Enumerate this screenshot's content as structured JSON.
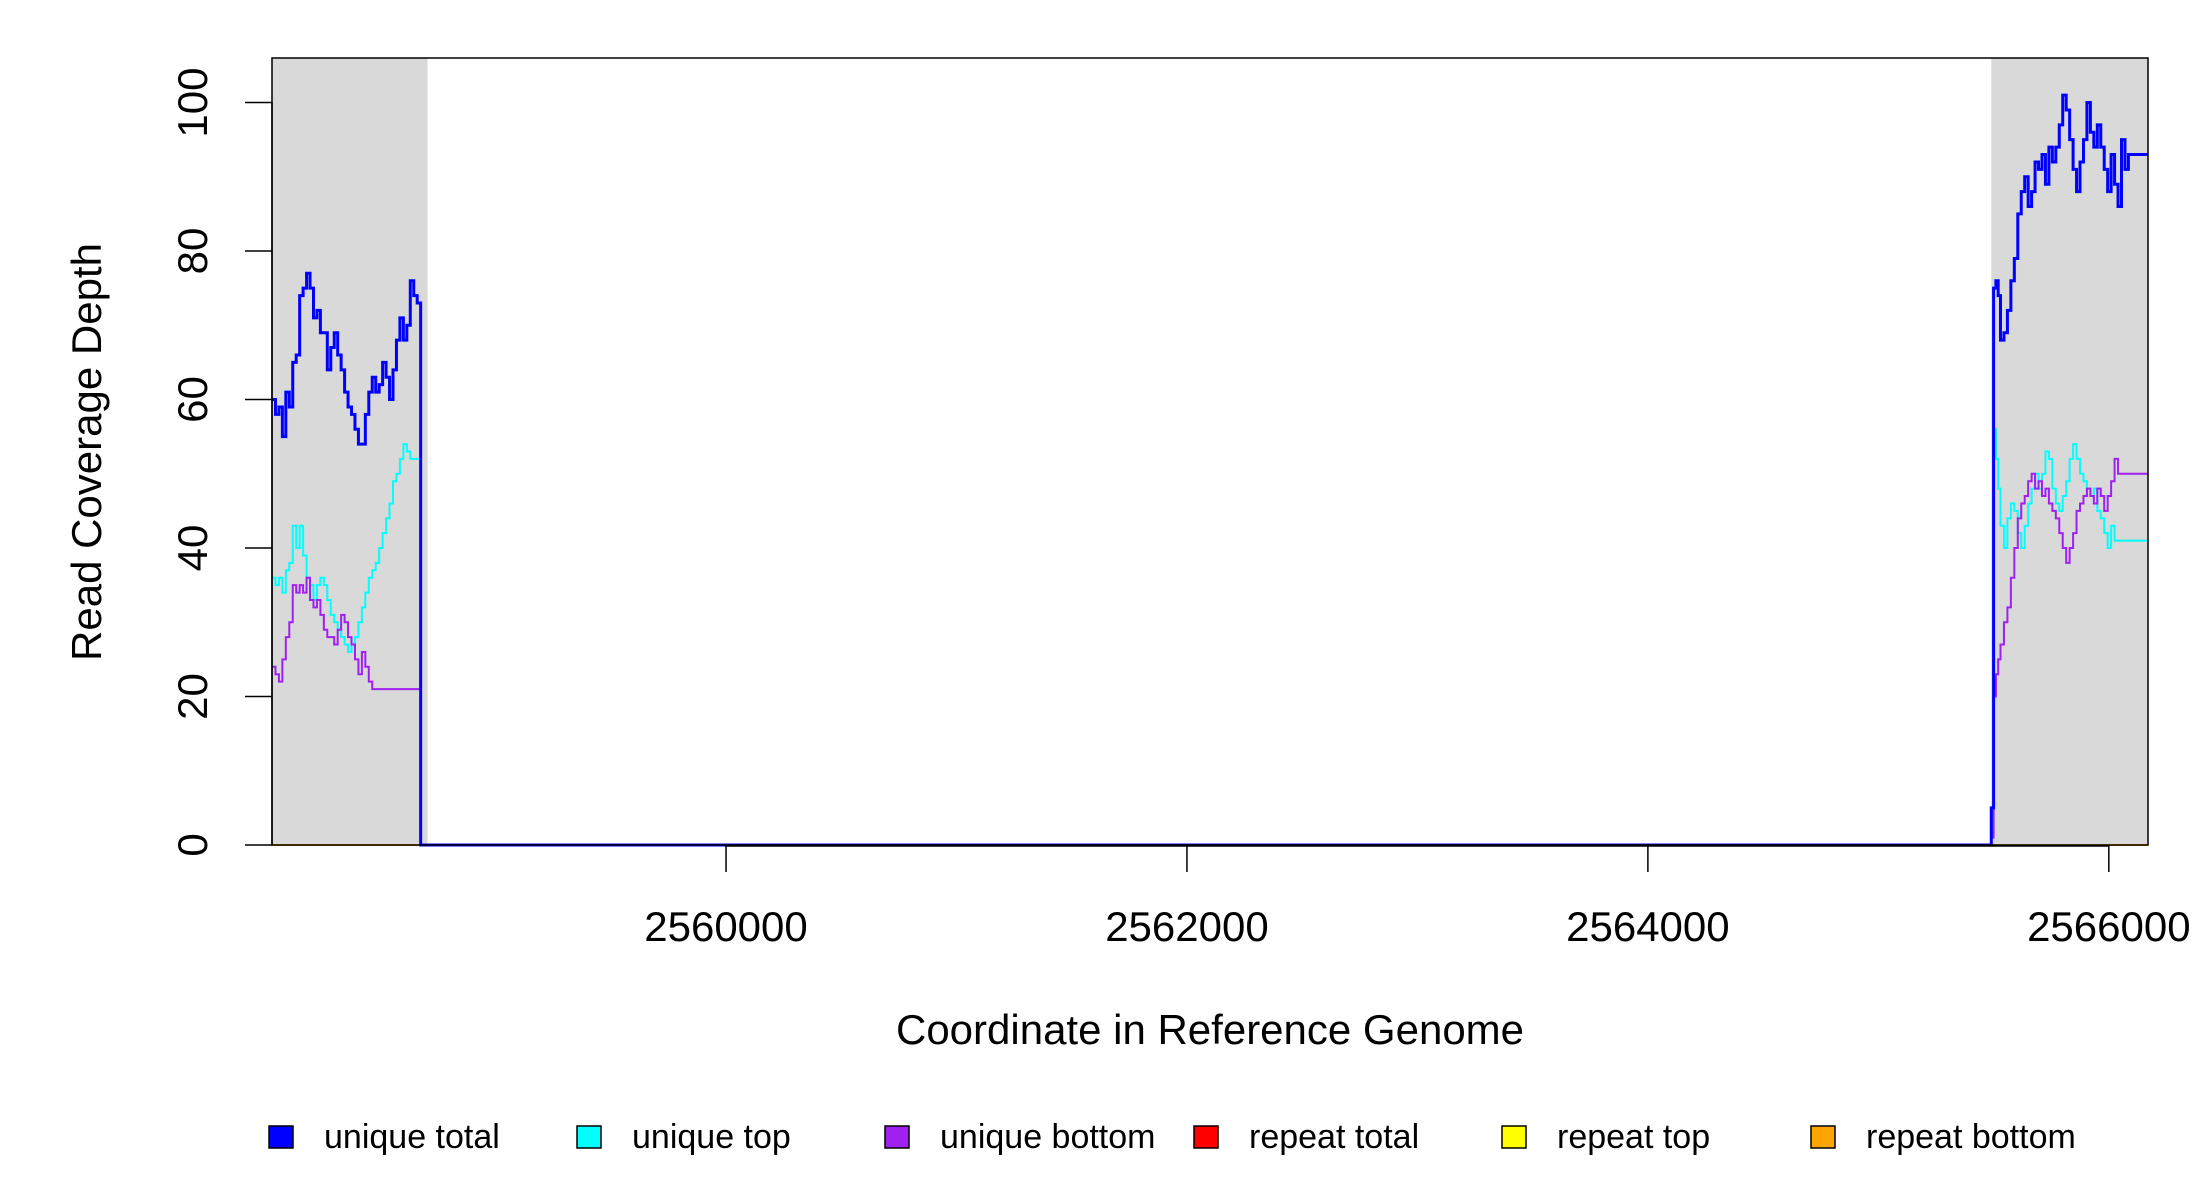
{
  "chart_data": {
    "type": "line",
    "title": "",
    "xlabel": "Coordinate in Reference Genome",
    "ylabel": "Read Coverage Depth",
    "xlim": [
      2558030,
      2566170
    ],
    "ylim": [
      0,
      106
    ],
    "x_ticks": [
      2560000,
      2562000,
      2564000,
      2566000
    ],
    "x_tick_labels": [
      "2560000",
      "2562000",
      "2564000",
      "2566000"
    ],
    "y_ticks": [
      0,
      20,
      40,
      60,
      80,
      100
    ],
    "y_tick_labels": [
      "0",
      "20",
      "40",
      "60",
      "80",
      "100"
    ],
    "shaded_regions": [
      [
        2558030,
        2558705
      ],
      [
        2565490,
        2566170
      ]
    ],
    "shade_color": "#d9d9d9",
    "legend_position": "bottom",
    "grid": false,
    "series": [
      {
        "name": "unique total",
        "color": "#0000ff",
        "width": 3,
        "x": [
          2558030,
          2558045,
          2558060,
          2558075,
          2558090,
          2558105,
          2558120,
          2558135,
          2558150,
          2558165,
          2558180,
          2558195,
          2558210,
          2558225,
          2558240,
          2558255,
          2558270,
          2558285,
          2558300,
          2558315,
          2558330,
          2558345,
          2558360,
          2558375,
          2558390,
          2558405,
          2558420,
          2558435,
          2558450,
          2558465,
          2558480,
          2558495,
          2558510,
          2558525,
          2558540,
          2558555,
          2558570,
          2558585,
          2558600,
          2558615,
          2558630,
          2558645,
          2558660,
          2558675,
          2558690,
          2558705,
          2558715,
          2565480,
          2565490,
          2565500,
          2565510,
          2565520,
          2565530,
          2565545,
          2565560,
          2565575,
          2565590,
          2565605,
          2565620,
          2565635,
          2565650,
          2565665,
          2565680,
          2565695,
          2565710,
          2565725,
          2565740,
          2565755,
          2565770,
          2565785,
          2565800,
          2565815,
          2565830,
          2565845,
          2565860,
          2565875,
          2565890,
          2565905,
          2565920,
          2565935,
          2565950,
          2565965,
          2565980,
          2565995,
          2566010,
          2566025,
          2566040,
          2566055,
          2566070,
          2566085,
          2566100,
          2566115,
          2566130,
          2566145,
          2566160,
          2566170
        ],
        "y": [
          60,
          58,
          59,
          55,
          61,
          59,
          65,
          66,
          74,
          75,
          77,
          75,
          71,
          72,
          69,
          69,
          64,
          67,
          69,
          66,
          64,
          61,
          59,
          58,
          56,
          54,
          54,
          58,
          61,
          63,
          61,
          62,
          65,
          63,
          60,
          64,
          68,
          71,
          68,
          70,
          76,
          74,
          73,
          0,
          0,
          0,
          0,
          0,
          5,
          75,
          76,
          74,
          68,
          69,
          72,
          76,
          79,
          85,
          88,
          90,
          86,
          88,
          92,
          91,
          93,
          89,
          94,
          92,
          94,
          97,
          101,
          99,
          95,
          91,
          88,
          92,
          95,
          100,
          96,
          94,
          97,
          94,
          91,
          88,
          93,
          89,
          86,
          95,
          91,
          93,
          93,
          93,
          93,
          93,
          93,
          93
        ]
      },
      {
        "name": "unique top",
        "color": "#00ffff",
        "width": 2,
        "x": [
          2558030,
          2558045,
          2558060,
          2558075,
          2558090,
          2558105,
          2558120,
          2558135,
          2558150,
          2558165,
          2558180,
          2558195,
          2558210,
          2558225,
          2558240,
          2558255,
          2558270,
          2558285,
          2558300,
          2558315,
          2558330,
          2558345,
          2558360,
          2558375,
          2558390,
          2558405,
          2558420,
          2558435,
          2558450,
          2558465,
          2558480,
          2558495,
          2558510,
          2558525,
          2558540,
          2558555,
          2558570,
          2558585,
          2558600,
          2558615,
          2558630,
          2558645,
          2558660,
          2558675,
          2558690,
          2558705,
          2558715,
          2565480,
          2565490,
          2565500,
          2565510,
          2565520,
          2565530,
          2565545,
          2565560,
          2565575,
          2565590,
          2565605,
          2565620,
          2565635,
          2565650,
          2565665,
          2565680,
          2565695,
          2565710,
          2565725,
          2565740,
          2565755,
          2565770,
          2565785,
          2565800,
          2565815,
          2565830,
          2565845,
          2565860,
          2565875,
          2565890,
          2565905,
          2565920,
          2565935,
          2565950,
          2565965,
          2565980,
          2565995,
          2566010,
          2566025,
          2566040,
          2566055,
          2566070,
          2566085,
          2566100,
          2566115,
          2566130,
          2566145,
          2566160,
          2566170
        ],
        "y": [
          36,
          35,
          36,
          34,
          37,
          38,
          43,
          40,
          43,
          39,
          36,
          35,
          33,
          35,
          36,
          35,
          33,
          31,
          30,
          29,
          28,
          27,
          26,
          27,
          28,
          30,
          32,
          34,
          36,
          37,
          38,
          40,
          42,
          44,
          46,
          49,
          50,
          52,
          54,
          53,
          52,
          52,
          52,
          0,
          0,
          0,
          0,
          0,
          2,
          56,
          52,
          48,
          43,
          40,
          44,
          46,
          45,
          42,
          40,
          43,
          46,
          48,
          50,
          48,
          50,
          53,
          52,
          48,
          46,
          45,
          47,
          49,
          52,
          54,
          52,
          50,
          49,
          48,
          47,
          48,
          45,
          44,
          42,
          40,
          43,
          41,
          41,
          41,
          41,
          41,
          41,
          41,
          41,
          41,
          41,
          41
        ]
      },
      {
        "name": "unique bottom",
        "color": "#a020f0",
        "width": 2,
        "x": [
          2558030,
          2558045,
          2558060,
          2558075,
          2558090,
          2558105,
          2558120,
          2558135,
          2558150,
          2558165,
          2558180,
          2558195,
          2558210,
          2558225,
          2558240,
          2558255,
          2558270,
          2558285,
          2558300,
          2558315,
          2558330,
          2558345,
          2558360,
          2558375,
          2558390,
          2558405,
          2558420,
          2558435,
          2558450,
          2558465,
          2558480,
          2558495,
          2558510,
          2558525,
          2558540,
          2558555,
          2558570,
          2558585,
          2558600,
          2558615,
          2558630,
          2558645,
          2558660,
          2558675,
          2558690,
          2558705,
          2558715,
          2565480,
          2565490,
          2565500,
          2565510,
          2565520,
          2565530,
          2565545,
          2565560,
          2565575,
          2565590,
          2565605,
          2565620,
          2565635,
          2565650,
          2565665,
          2565680,
          2565695,
          2565710,
          2565725,
          2565740,
          2565755,
          2565770,
          2565785,
          2565800,
          2565815,
          2565830,
          2565845,
          2565860,
          2565875,
          2565890,
          2565905,
          2565920,
          2565935,
          2565950,
          2565965,
          2565980,
          2565995,
          2566010,
          2566025,
          2566040,
          2566055,
          2566070,
          2566085,
          2566100,
          2566115,
          2566130,
          2566145,
          2566160,
          2566170
        ],
        "y": [
          24,
          23,
          22,
          25,
          28,
          30,
          35,
          34,
          35,
          34,
          36,
          33,
          32,
          33,
          31,
          29,
          28,
          28,
          27,
          29,
          31,
          30,
          28,
          27,
          25,
          23,
          26,
          24,
          22,
          21,
          21,
          21,
          21,
          21,
          21,
          21,
          21,
          21,
          21,
          21,
          21,
          21,
          21,
          0,
          0,
          0,
          0,
          0,
          1,
          20,
          23,
          25,
          27,
          30,
          32,
          36,
          40,
          44,
          46,
          47,
          49,
          50,
          48,
          49,
          47,
          48,
          46,
          45,
          44,
          42,
          40,
          38,
          40,
          42,
          45,
          46,
          47,
          48,
          47,
          46,
          48,
          47,
          45,
          47,
          49,
          52,
          50,
          50,
          50,
          50,
          50,
          50,
          50,
          50,
          50,
          50
        ]
      },
      {
        "name": "repeat total",
        "color": "#ff0000",
        "width": 2,
        "x": [
          2558030,
          2566170
        ],
        "y": [
          0,
          0
        ]
      },
      {
        "name": "repeat top",
        "color": "#ffff00",
        "width": 2,
        "x": [
          2558030,
          2566170
        ],
        "y": [
          0,
          0
        ]
      },
      {
        "name": "repeat bottom",
        "color": "#ffa500",
        "width": 2,
        "x": [
          2558030,
          2566170
        ],
        "y": [
          0,
          0
        ]
      }
    ]
  }
}
